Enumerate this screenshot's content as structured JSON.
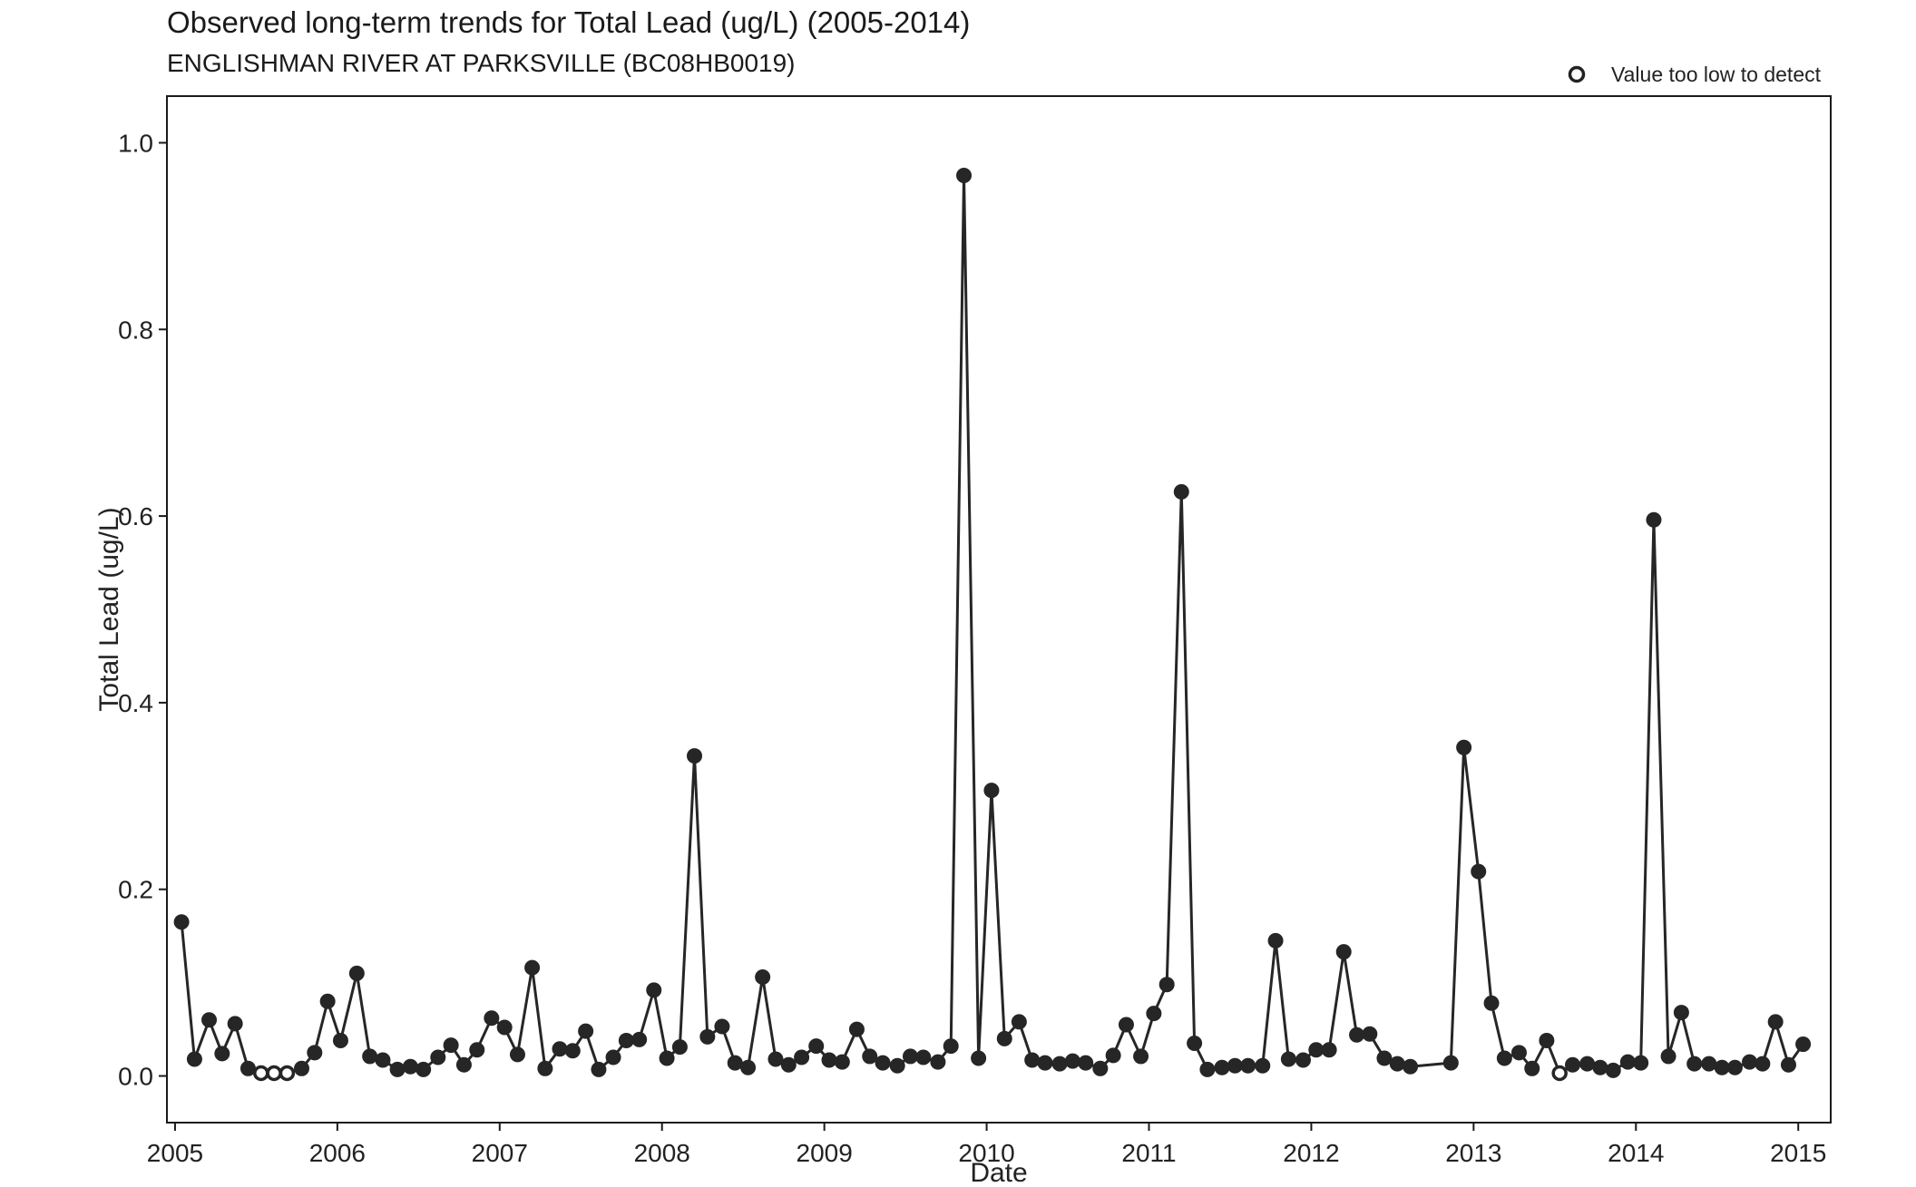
{
  "chart_data": {
    "type": "scatter",
    "title": "Observed long-term trends for Total Lead (ug/L) (2005-2014)",
    "subtitle": "ENGLISHMAN RIVER AT PARKSVILLE (BC08HB0019)",
    "xlabel": "Date",
    "ylabel": "Total Lead (ug/L)",
    "xlim": [
      2004.95,
      2015.2
    ],
    "ylim": [
      -0.05,
      1.05
    ],
    "x_ticks": [
      2005,
      2006,
      2007,
      2008,
      2009,
      2010,
      2011,
      2012,
      2013,
      2014,
      2015
    ],
    "y_ticks": [
      0.0,
      0.2,
      0.4,
      0.6,
      0.8,
      1.0
    ],
    "y_tick_labels": [
      "0.0",
      "0.2",
      "0.4",
      "0.6",
      "0.8",
      "1.0"
    ],
    "legend": {
      "label": "Value too low to detect",
      "position": "top-right"
    },
    "grid": false,
    "series": [
      {
        "line": true,
        "points": [
          [
            2005.04,
            0.165,
            false
          ],
          [
            2005.12,
            0.018,
            false
          ],
          [
            2005.21,
            0.06,
            false
          ],
          [
            2005.29,
            0.024,
            false
          ],
          [
            2005.37,
            0.056,
            false
          ],
          [
            2005.45,
            0.008,
            false
          ],
          [
            2005.53,
            0.003,
            true
          ],
          [
            2005.61,
            0.003,
            true
          ],
          [
            2005.69,
            0.003,
            true
          ],
          [
            2005.78,
            0.008,
            false
          ],
          [
            2005.86,
            0.025,
            false
          ],
          [
            2005.94,
            0.08,
            false
          ],
          [
            2006.02,
            0.038,
            false
          ],
          [
            2006.12,
            0.11,
            false
          ],
          [
            2006.2,
            0.021,
            false
          ],
          [
            2006.28,
            0.017,
            false
          ],
          [
            2006.37,
            0.007,
            false
          ],
          [
            2006.45,
            0.01,
            false
          ],
          [
            2006.53,
            0.007,
            false
          ],
          [
            2006.62,
            0.02,
            false
          ],
          [
            2006.7,
            0.033,
            false
          ],
          [
            2006.78,
            0.012,
            false
          ],
          [
            2006.86,
            0.028,
            false
          ],
          [
            2006.95,
            0.062,
            false
          ],
          [
            2007.03,
            0.052,
            false
          ],
          [
            2007.11,
            0.023,
            false
          ],
          [
            2007.2,
            0.116,
            false
          ],
          [
            2007.28,
            0.008,
            false
          ],
          [
            2007.37,
            0.029,
            false
          ],
          [
            2007.45,
            0.027,
            false
          ],
          [
            2007.53,
            0.048,
            false
          ],
          [
            2007.61,
            0.007,
            false
          ],
          [
            2007.7,
            0.02,
            false
          ],
          [
            2007.78,
            0.038,
            false
          ],
          [
            2007.86,
            0.039,
            false
          ],
          [
            2007.95,
            0.092,
            false
          ],
          [
            2008.03,
            0.019,
            false
          ],
          [
            2008.11,
            0.031,
            false
          ],
          [
            2008.2,
            0.343,
            false
          ],
          [
            2008.28,
            0.042,
            false
          ],
          [
            2008.37,
            0.053,
            false
          ],
          [
            2008.45,
            0.014,
            false
          ],
          [
            2008.53,
            0.009,
            false
          ],
          [
            2008.62,
            0.106,
            false
          ],
          [
            2008.7,
            0.018,
            false
          ],
          [
            2008.78,
            0.012,
            false
          ],
          [
            2008.86,
            0.02,
            false
          ],
          [
            2008.95,
            0.032,
            false
          ],
          [
            2009.03,
            0.017,
            false
          ],
          [
            2009.11,
            0.015,
            false
          ],
          [
            2009.2,
            0.05,
            false
          ],
          [
            2009.28,
            0.021,
            false
          ],
          [
            2009.36,
            0.014,
            false
          ],
          [
            2009.45,
            0.011,
            false
          ],
          [
            2009.53,
            0.021,
            false
          ],
          [
            2009.61,
            0.02,
            false
          ],
          [
            2009.7,
            0.015,
            false
          ],
          [
            2009.78,
            0.032,
            false
          ],
          [
            2009.86,
            0.965,
            false
          ],
          [
            2009.95,
            0.019,
            false
          ],
          [
            2010.03,
            0.306,
            false
          ],
          [
            2010.11,
            0.04,
            false
          ],
          [
            2010.2,
            0.058,
            false
          ],
          [
            2010.28,
            0.017,
            false
          ],
          [
            2010.36,
            0.014,
            false
          ],
          [
            2010.45,
            0.013,
            false
          ],
          [
            2010.53,
            0.016,
            false
          ],
          [
            2010.61,
            0.014,
            false
          ],
          [
            2010.7,
            0.008,
            false
          ],
          [
            2010.78,
            0.022,
            false
          ],
          [
            2010.86,
            0.055,
            false
          ],
          [
            2010.95,
            0.021,
            false
          ],
          [
            2011.03,
            0.067,
            false
          ],
          [
            2011.11,
            0.098,
            false
          ],
          [
            2011.2,
            0.626,
            false
          ],
          [
            2011.28,
            0.035,
            false
          ],
          [
            2011.36,
            0.007,
            false
          ],
          [
            2011.45,
            0.009,
            false
          ],
          [
            2011.53,
            0.011,
            false
          ],
          [
            2011.61,
            0.011,
            false
          ],
          [
            2011.7,
            0.011,
            false
          ],
          [
            2011.78,
            0.145,
            false
          ],
          [
            2011.86,
            0.018,
            false
          ],
          [
            2011.95,
            0.017,
            false
          ],
          [
            2012.03,
            0.028,
            false
          ],
          [
            2012.11,
            0.028,
            false
          ],
          [
            2012.2,
            0.133,
            false
          ],
          [
            2012.28,
            0.044,
            false
          ],
          [
            2012.36,
            0.045,
            false
          ],
          [
            2012.45,
            0.019,
            false
          ],
          [
            2012.53,
            0.013,
            false
          ],
          [
            2012.61,
            0.01,
            false
          ],
          [
            2012.86,
            0.014,
            false
          ],
          [
            2012.94,
            0.352,
            false
          ],
          [
            2013.03,
            0.219,
            false
          ],
          [
            2013.11,
            0.078,
            false
          ],
          [
            2013.19,
            0.019,
            false
          ],
          [
            2013.28,
            0.025,
            false
          ],
          [
            2013.36,
            0.008,
            false
          ],
          [
            2013.45,
            0.038,
            false
          ],
          [
            2013.53,
            0.003,
            true
          ],
          [
            2013.61,
            0.012,
            false
          ],
          [
            2013.7,
            0.013,
            false
          ],
          [
            2013.78,
            0.009,
            false
          ],
          [
            2013.86,
            0.006,
            false
          ],
          [
            2013.95,
            0.015,
            false
          ],
          [
            2014.03,
            0.014,
            false
          ],
          [
            2014.11,
            0.596,
            false
          ],
          [
            2014.2,
            0.021,
            false
          ],
          [
            2014.28,
            0.068,
            false
          ],
          [
            2014.36,
            0.013,
            false
          ],
          [
            2014.45,
            0.013,
            false
          ],
          [
            2014.53,
            0.009,
            false
          ],
          [
            2014.61,
            0.009,
            false
          ],
          [
            2014.7,
            0.015,
            false
          ],
          [
            2014.78,
            0.013,
            false
          ],
          [
            2014.86,
            0.058,
            false
          ],
          [
            2014.94,
            0.012,
            false
          ],
          [
            2015.03,
            0.034,
            false
          ]
        ]
      }
    ]
  }
}
